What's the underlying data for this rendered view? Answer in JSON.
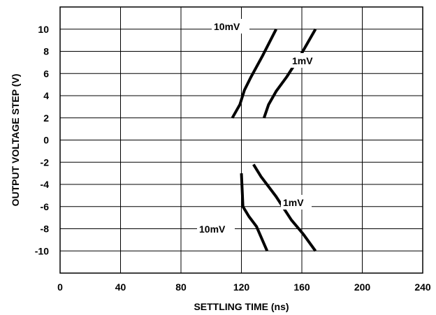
{
  "chart_data": {
    "type": "line",
    "title": "",
    "xlabel": "SETTLING TIME (ns)",
    "ylabel": "OUTPUT VOLTAGE STEP (V)",
    "xlim": [
      0,
      240
    ],
    "ylim": [
      -12,
      12
    ],
    "x_ticks": [
      "0",
      "40",
      "80",
      "120",
      "160",
      "200",
      "240"
    ],
    "y_ticks": [
      "10",
      "8",
      "6",
      "4",
      "2",
      "0",
      "-2",
      "-4",
      "-6",
      "-8",
      "-10"
    ],
    "grid": true,
    "legend": "none",
    "series": [
      {
        "name": "10mV",
        "points": [
          [
            114,
            2
          ],
          [
            119,
            3.2
          ],
          [
            122,
            4.5
          ],
          [
            126,
            5.6
          ],
          [
            134,
            7.6
          ],
          [
            143,
            10
          ]
        ]
      },
      {
        "name": "1mV",
        "points": [
          [
            135,
            2
          ],
          [
            138,
            3.2
          ],
          [
            143,
            4.4
          ],
          [
            150,
            5.7
          ],
          [
            159,
            7.6
          ],
          [
            169,
            10
          ]
        ]
      },
      {
        "name": "10mV",
        "points": [
          [
            120,
            -3
          ],
          [
            120.5,
            -4.5
          ],
          [
            121,
            -6
          ],
          [
            125,
            -6.9
          ],
          [
            130,
            -7.8
          ],
          [
            137,
            -10
          ]
        ]
      },
      {
        "name": "1mV",
        "points": [
          [
            128,
            -2.2
          ],
          [
            133,
            -3.3
          ],
          [
            143,
            -5.1
          ],
          [
            153,
            -7.2
          ],
          [
            161,
            -8.5
          ],
          [
            169,
            -10
          ]
        ]
      }
    ],
    "annotations": [
      {
        "text": "10mV",
        "series": 0
      },
      {
        "text": "1mV",
        "series": 1
      },
      {
        "text": "10mV",
        "series": 2
      },
      {
        "text": "1mV",
        "series": 3
      }
    ]
  }
}
